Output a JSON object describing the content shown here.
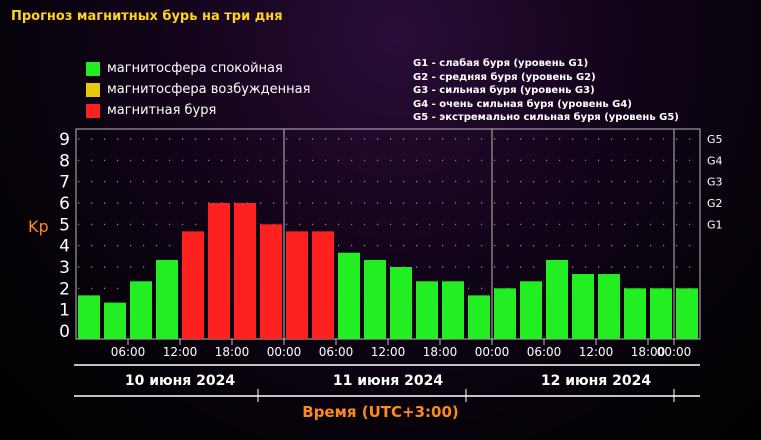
{
  "title": "Прогноз магнитных бурь на три дня",
  "legend": [
    {
      "label": "магнитосфера спокойная",
      "color": "#22ee22"
    },
    {
      "label": "магнитосфера возбужденная",
      "color": "#e8c80c"
    },
    {
      "label": "магнитная буря",
      "color": "#ff2020"
    }
  ],
  "g_legend": [
    "G1 - слабая буря (уровень G1)",
    "G2 - средняя буря (уровень G2)",
    "G3 - сильная буря (уровень G3)",
    "G4 - очень сильная буря (уровень G4)",
    "G5 - экстремально сильная буря (уровень G5)"
  ],
  "chart_data": {
    "type": "bar",
    "title": "Прогноз магнитных бурь на три дня",
    "ylabel": "Kp",
    "xlabel": "Время (UTC+3:00)",
    "ylim": [
      0,
      9
    ],
    "yticks": [
      "0",
      "1",
      "2",
      "3",
      "4",
      "5",
      "6",
      "7",
      "8",
      "9"
    ],
    "right_ticks": [
      {
        "label": "G1",
        "value": 5
      },
      {
        "label": "G2",
        "value": 6
      },
      {
        "label": "G3",
        "value": 7
      },
      {
        "label": "G4",
        "value": 8
      },
      {
        "label": "G5",
        "value": 9
      }
    ],
    "xticks": [
      "06:00",
      "12:00",
      "18:00",
      "00:00",
      "06:00",
      "12:00",
      "18:00",
      "00:00",
      "06:00",
      "12:00",
      "18:00",
      "00:00"
    ],
    "days": [
      "10 июня 2024",
      "11 июня 2024",
      "12 июня 2024"
    ],
    "values": [
      1.67,
      1.33,
      2.33,
      3.33,
      4.67,
      6,
      6,
      5,
      4.67,
      4.67,
      3.67,
      3.33,
      3,
      2.33,
      2.33,
      1.67,
      2,
      2.33,
      3.33,
      2.67,
      2.67,
      2,
      2,
      2
    ],
    "colors": [
      "#22ee22",
      "#22ee22",
      "#22ee22",
      "#22ee22",
      "#ff2020",
      "#ff2020",
      "#ff2020",
      "#ff2020",
      "#ff2020",
      "#ff2020",
      "#22ee22",
      "#22ee22",
      "#22ee22",
      "#22ee22",
      "#22ee22",
      "#22ee22",
      "#22ee22",
      "#22ee22",
      "#22ee22",
      "#22ee22",
      "#22ee22",
      "#22ee22",
      "#22ee22",
      "#22ee22"
    ],
    "grid": true
  }
}
